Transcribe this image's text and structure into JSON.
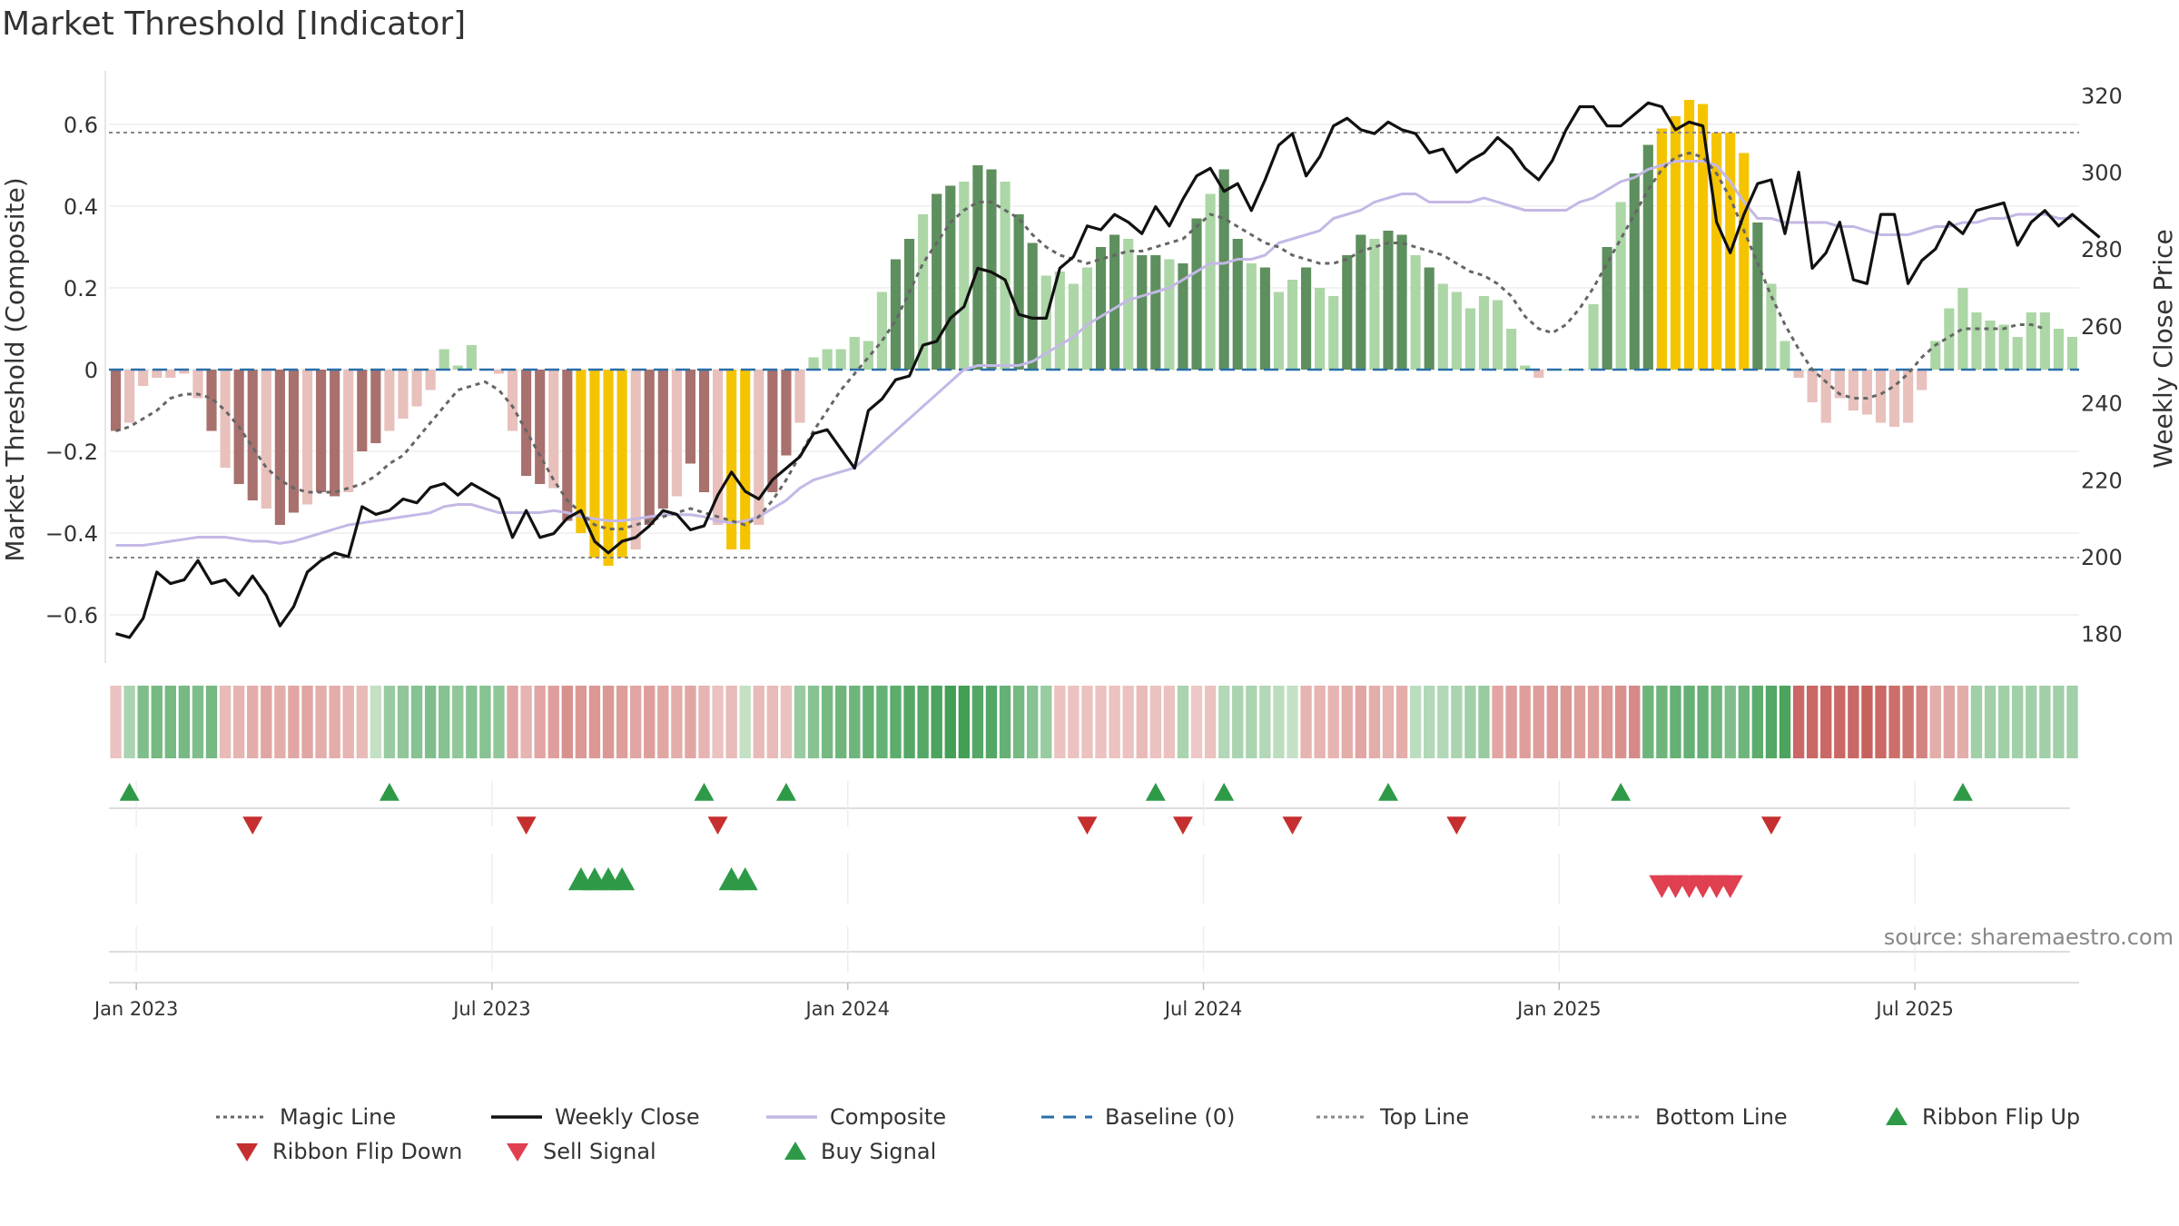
{
  "title": "Market Threshold [Indicator]",
  "source": "source: sharemaestro.com",
  "colors": {
    "strong_green": "#5e8f5e",
    "light_green": "#acd6a6",
    "strong_red": "#a8716e",
    "light_red": "#e8c0bc",
    "yellow": "#f5c400",
    "composite": "#c4b8e6",
    "close": "#111111",
    "magic": "#666666",
    "baseline": "#2a6fa8",
    "buy": "#2e9a48",
    "sell": "#d6303a",
    "flip_down": "#c62f2f"
  },
  "chart_data": {
    "type": "bar",
    "left_axis": {
      "label": "Market Threshold (Composite)",
      "ticks": [
        "0.6",
        "0.4",
        "0.2",
        "0",
        "−0.2",
        "−0.4",
        "−0.6"
      ],
      "tick_values": [
        0.6,
        0.4,
        0.2,
        0,
        -0.2,
        -0.4,
        -0.6
      ],
      "range": [
        -0.72,
        0.72
      ]
    },
    "right_axis": {
      "label": "Weekly Close Price",
      "ticks": [
        "320",
        "300",
        "280",
        "260",
        "240",
        "220",
        "200",
        "180"
      ],
      "tick_values": [
        320,
        300,
        280,
        260,
        240,
        220,
        200,
        180
      ],
      "range": [
        175,
        325
      ]
    },
    "x_ticks": [
      "Jan 2023",
      "Jul 2023",
      "Jan 2024",
      "Jul 2024",
      "Jan 2025",
      "Jul 2025"
    ],
    "x_tick_weeks": [
      2,
      28,
      54,
      80,
      106,
      132
    ],
    "top_line": 0.58,
    "bottom_line": -0.46,
    "bars": [
      -0.15,
      -0.13,
      -0.04,
      -0.02,
      -0.02,
      -0.01,
      -0.07,
      -0.15,
      -0.24,
      -0.28,
      -0.32,
      -0.34,
      -0.38,
      -0.35,
      -0.33,
      -0.3,
      -0.31,
      -0.3,
      -0.2,
      -0.18,
      -0.15,
      -0.12,
      -0.09,
      -0.05,
      0.05,
      0.01,
      0.06,
      0,
      -0.01,
      -0.15,
      -0.26,
      -0.28,
      -0.29,
      -0.37,
      -0.4,
      -0.46,
      -0.48,
      -0.46,
      -0.44,
      -0.38,
      -0.34,
      -0.31,
      -0.23,
      -0.3,
      -0.38,
      -0.44,
      -0.44,
      -0.38,
      -0.3,
      -0.21,
      -0.13,
      0.03,
      0.05,
      0.05,
      0.08,
      0.07,
      0.19,
      0.27,
      0.32,
      0.38,
      0.43,
      0.45,
      0.46,
      0.5,
      0.49,
      0.46,
      0.38,
      0.31,
      0.23,
      0.24,
      0.21,
      0.25,
      0.3,
      0.33,
      0.32,
      0.28,
      0.28,
      0.27,
      0.26,
      0.37,
      0.43,
      0.49,
      0.32,
      0.26,
      0.25,
      0.19,
      0.22,
      0.25,
      0.2,
      0.18,
      0.28,
      0.33,
      0.32,
      0.34,
      0.33,
      0.28,
      0.25,
      0.21,
      0.19,
      0.15,
      0.18,
      0.17,
      0.1,
      0.01,
      -0.02,
      0,
      0,
      0,
      0.16,
      0.3,
      0.41,
      0.48,
      0.55,
      0.59,
      0.62,
      0.66,
      0.65,
      0.58,
      0.58,
      0.53,
      0.36,
      0.21,
      0.07,
      -0.02,
      -0.08,
      -0.13,
      -0.07,
      -0.1,
      -0.11,
      -0.13,
      -0.14,
      -0.13,
      -0.05,
      0.07,
      0.15,
      0.2,
      0.14,
      0.12,
      0.11,
      0.08,
      0.14,
      0.14,
      0.1,
      0.08
    ],
    "bar_highlight_weeks": [
      34,
      35,
      36,
      37,
      45,
      46,
      113,
      114,
      115,
      116,
      117,
      118,
      119
    ],
    "magic_line": [
      -0.15,
      -0.14,
      -0.12,
      -0.1,
      -0.07,
      -0.06,
      -0.06,
      -0.07,
      -0.1,
      -0.14,
      -0.19,
      -0.24,
      -0.27,
      -0.29,
      -0.3,
      -0.3,
      -0.3,
      -0.29,
      -0.28,
      -0.26,
      -0.23,
      -0.21,
      -0.17,
      -0.13,
      -0.09,
      -0.05,
      -0.04,
      -0.03,
      -0.05,
      -0.09,
      -0.15,
      -0.21,
      -0.27,
      -0.32,
      -0.35,
      -0.38,
      -0.39,
      -0.39,
      -0.38,
      -0.37,
      -0.36,
      -0.35,
      -0.34,
      -0.35,
      -0.36,
      -0.37,
      -0.38,
      -0.36,
      -0.32,
      -0.27,
      -0.21,
      -0.15,
      -0.1,
      -0.05,
      -0.01,
      0.03,
      0.07,
      0.12,
      0.19,
      0.26,
      0.31,
      0.36,
      0.39,
      0.41,
      0.41,
      0.39,
      0.37,
      0.33,
      0.3,
      0.28,
      0.27,
      0.26,
      0.27,
      0.28,
      0.29,
      0.29,
      0.3,
      0.31,
      0.32,
      0.35,
      0.38,
      0.37,
      0.35,
      0.33,
      0.31,
      0.3,
      0.28,
      0.27,
      0.26,
      0.26,
      0.27,
      0.29,
      0.3,
      0.31,
      0.31,
      0.3,
      0.29,
      0.28,
      0.26,
      0.24,
      0.23,
      0.21,
      0.18,
      0.13,
      0.1,
      0.09,
      0.11,
      0.15,
      0.2,
      0.26,
      0.32,
      0.38,
      0.44,
      0.49,
      0.52,
      0.53,
      0.52,
      0.48,
      0.42,
      0.34,
      0.26,
      0.18,
      0.11,
      0.05,
      0,
      -0.03,
      -0.06,
      -0.07,
      -0.07,
      -0.06,
      -0.04,
      -0.01,
      0.03,
      0.06,
      0.08,
      0.1,
      0.1,
      0.1,
      0.1,
      0.11,
      0.11,
      0.1
    ],
    "composite": [
      -0.43,
      -0.43,
      -0.43,
      -0.425,
      -0.42,
      -0.415,
      -0.41,
      -0.41,
      -0.41,
      -0.415,
      -0.42,
      -0.42,
      -0.425,
      -0.42,
      -0.41,
      -0.4,
      -0.39,
      -0.38,
      -0.375,
      -0.37,
      -0.365,
      -0.36,
      -0.355,
      -0.35,
      -0.335,
      -0.33,
      -0.33,
      -0.34,
      -0.35,
      -0.35,
      -0.35,
      -0.35,
      -0.345,
      -0.35,
      -0.36,
      -0.365,
      -0.37,
      -0.37,
      -0.365,
      -0.36,
      -0.355,
      -0.355,
      -0.355,
      -0.36,
      -0.37,
      -0.375,
      -0.37,
      -0.36,
      -0.34,
      -0.32,
      -0.29,
      -0.27,
      -0.26,
      -0.25,
      -0.24,
      -0.21,
      -0.18,
      -0.15,
      -0.12,
      -0.09,
      -0.06,
      -0.03,
      0,
      0.01,
      0.01,
      0.01,
      0.01,
      0.02,
      0.04,
      0.06,
      0.08,
      0.11,
      0.13,
      0.15,
      0.17,
      0.18,
      0.19,
      0.2,
      0.22,
      0.24,
      0.26,
      0.26,
      0.27,
      0.27,
      0.28,
      0.31,
      0.32,
      0.33,
      0.34,
      0.37,
      0.38,
      0.39,
      0.41,
      0.42,
      0.43,
      0.43,
      0.41,
      0.41,
      0.41,
      0.41,
      0.42,
      0.41,
      0.4,
      0.39,
      0.39,
      0.39,
      0.39,
      0.41,
      0.42,
      0.44,
      0.46,
      0.47,
      0.49,
      0.5,
      0.51,
      0.51,
      0.51,
      0.5,
      0.46,
      0.41,
      0.37,
      0.37,
      0.36,
      0.36,
      0.36,
      0.36,
      0.35,
      0.35,
      0.34,
      0.33,
      0.33,
      0.33,
      0.34,
      0.35,
      0.35,
      0.36,
      0.36,
      0.37,
      0.37,
      0.38,
      0.38,
      0.38,
      0.37,
      0.37
    ],
    "weekly_close": [
      180,
      179,
      184,
      196,
      193,
      194,
      199,
      193,
      194,
      190,
      195,
      190,
      182,
      187,
      196,
      199,
      201,
      200,
      213,
      211,
      212,
      215,
      214,
      218,
      219,
      216,
      219,
      217,
      215,
      205,
      212,
      205,
      206,
      210,
      212,
      204,
      201,
      204,
      205,
      208,
      212,
      211,
      207,
      208,
      216,
      222,
      217,
      215,
      220,
      223,
      226,
      232,
      233,
      228,
      223,
      238,
      241,
      246,
      247,
      255,
      256,
      262,
      265,
      275,
      274,
      272,
      263,
      262,
      262,
      275,
      278,
      286,
      285,
      289,
      287,
      284,
      291,
      286,
      293,
      299,
      301,
      295,
      297,
      290,
      298,
      307,
      310,
      299,
      304,
      312,
      314,
      311,
      310,
      313,
      311,
      310,
      305,
      306,
      300,
      303,
      305,
      309,
      306,
      301,
      298,
      303,
      311,
      317,
      317,
      312,
      312,
      315,
      318,
      317,
      311,
      313,
      312,
      287,
      279,
      289,
      297,
      298,
      284,
      300,
      275,
      279,
      287,
      272,
      271,
      289,
      289,
      271,
      277,
      280,
      287,
      284,
      290,
      291,
      292,
      281,
      287,
      290,
      286,
      289,
      286,
      283
    ],
    "ribbon": [
      0.25,
      0.35,
      0.6,
      0.65,
      0.65,
      0.65,
      0.6,
      0.65,
      0.3,
      0.35,
      0.4,
      0.45,
      0.4,
      0.45,
      0.45,
      0.4,
      0.4,
      0.35,
      0.3,
      0.2,
      0.45,
      0.5,
      0.55,
      0.6,
      0.55,
      0.5,
      0.55,
      0.55,
      0.5,
      0.45,
      0.35,
      0.45,
      0.5,
      0.6,
      0.55,
      0.55,
      0.55,
      0.5,
      0.45,
      0.5,
      0.45,
      0.4,
      0.45,
      0.35,
      0.25,
      0.3,
      0.2,
      0.3,
      0.3,
      0.25,
      0.45,
      0.55,
      0.65,
      0.7,
      0.7,
      0.75,
      0.75,
      0.8,
      0.85,
      0.85,
      0.9,
      0.95,
      0.95,
      0.85,
      0.85,
      0.75,
      0.65,
      0.55,
      0.45,
      0.25,
      0.25,
      0.25,
      0.25,
      0.25,
      0.25,
      0.3,
      0.25,
      0.25,
      0.35,
      0.2,
      0.25,
      0.3,
      0.35,
      0.35,
      0.3,
      0.25,
      0.2,
      0.35,
      0.35,
      0.35,
      0.4,
      0.45,
      0.4,
      0.35,
      0.4,
      0.25,
      0.3,
      0.3,
      0.35,
      0.4,
      0.45,
      0.45,
      0.5,
      0.5,
      0.5,
      0.55,
      0.55,
      0.5,
      0.5,
      0.55,
      0.6,
      0.65,
      0.7,
      0.7,
      0.75,
      0.75,
      0.75,
      0.7,
      0.6,
      0.7,
      0.8,
      0.85,
      0.9,
      0.9,
      0.9,
      0.9,
      0.9,
      0.9,
      0.95,
      0.9,
      0.85,
      0.8,
      0.7,
      0.4,
      0.45,
      0.4,
      0.4,
      0.4,
      0.4,
      0.4,
      0.4,
      0.4,
      0.4,
      0.4
    ],
    "ribbon_sign": [
      -1,
      1,
      1,
      1,
      1,
      1,
      1,
      1,
      -1,
      -1,
      -1,
      -1,
      -1,
      -1,
      -1,
      -1,
      -1,
      -1,
      -1,
      1,
      1,
      1,
      1,
      1,
      1,
      1,
      1,
      1,
      1,
      -1,
      -1,
      -1,
      -1,
      -1,
      -1,
      -1,
      -1,
      -1,
      -1,
      -1,
      -1,
      -1,
      -1,
      -1,
      -1,
      -1,
      1,
      -1,
      -1,
      -1,
      1,
      1,
      1,
      1,
      1,
      1,
      1,
      1,
      1,
      1,
      1,
      1,
      1,
      1,
      1,
      1,
      1,
      1,
      1,
      -1,
      -1,
      -1,
      -1,
      -1,
      -1,
      -1,
      -1,
      -1,
      1,
      -1,
      -1,
      1,
      1,
      1,
      1,
      1,
      1,
      -1,
      -1,
      -1,
      -1,
      -1,
      -1,
      -1,
      -1,
      1,
      1,
      1,
      1,
      1,
      1,
      -1,
      -1,
      -1,
      -1,
      -1,
      -1,
      -1,
      -1,
      -1,
      -1,
      -1,
      1,
      1,
      1,
      1,
      1,
      1,
      1,
      1,
      1,
      1,
      1,
      -1,
      -1,
      -1,
      -1,
      -1,
      -1,
      -1,
      -1,
      -1,
      -1,
      -1,
      -1,
      -1,
      1,
      1,
      1,
      1,
      1,
      1,
      1,
      1,
      1,
      1,
      1
    ],
    "ribbon_flip_up_weeks": [
      1,
      20,
      43,
      49,
      76,
      81,
      93,
      110,
      135
    ],
    "ribbon_flip_down_weeks": [
      10,
      30,
      44,
      71,
      78,
      86,
      98,
      121
    ],
    "buy_signal_weeks": [
      34,
      35,
      36,
      37,
      45,
      46
    ],
    "sell_signal_weeks": [
      113,
      114,
      115,
      116,
      117,
      118
    ],
    "legend": [
      {
        "label": "Magic Line",
        "style": "dotted-line",
        "color": "#666666"
      },
      {
        "label": "Weekly Close",
        "style": "solid-line",
        "color": "#111111"
      },
      {
        "label": "Composite",
        "style": "solid-line",
        "color": "#c4b8e6"
      },
      {
        "label": "Baseline (0)",
        "style": "dashed-line",
        "color": "#2a6fa8"
      },
      {
        "label": "Top Line",
        "style": "dotted-line",
        "color": "#888888"
      },
      {
        "label": "Bottom Line",
        "style": "dotted-line",
        "color": "#888888"
      },
      {
        "label": "Ribbon Flip Up",
        "style": "triangle-up",
        "color": "#2e9a48"
      },
      {
        "label": "Ribbon Flip Down",
        "style": "triangle-down",
        "color": "#c62f2f"
      },
      {
        "label": "Sell Signal",
        "style": "triangle-down",
        "color": "#e04050"
      },
      {
        "label": "Buy Signal",
        "style": "triangle-up",
        "color": "#2e9a48"
      }
    ]
  }
}
